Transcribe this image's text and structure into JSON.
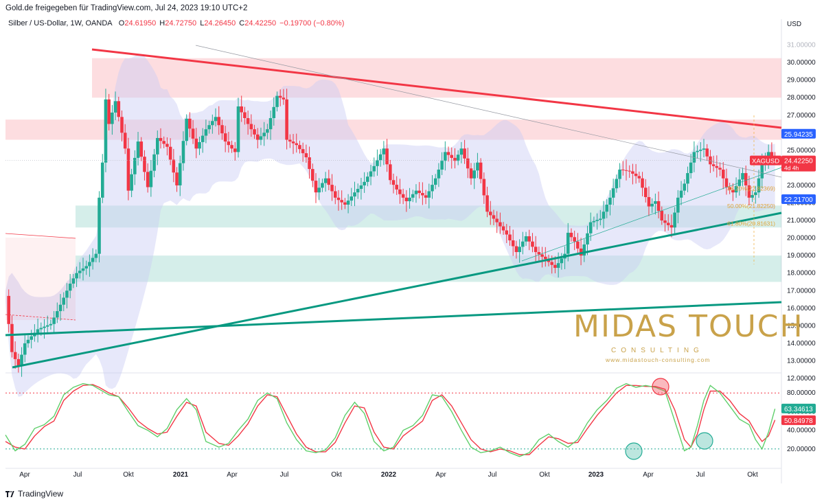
{
  "header": {
    "source": "Gold.de freigegeben für TradingView.com, Jul 24, 2023 19:10 UTC+2"
  },
  "legend": {
    "symbol": "Silber / US-Dollar, 1W, OANDA",
    "o_label": "O",
    "o": "24.61950",
    "h_label": "H",
    "h": "24.72750",
    "l_label": "L",
    "l": "24.26450",
    "c_label": "C",
    "c": "24.42250",
    "change": "−0.19700 (−0.80%)"
  },
  "footer": {
    "brand": "TradingView"
  },
  "watermark": {
    "title": "MIDAS TOUCH",
    "subtitle": "CONSULTING",
    "url": "www.midastouch-consulting.com"
  },
  "colors": {
    "up": "#22ab94",
    "down": "#f23645",
    "resistance": "#f23645",
    "support": "#089981",
    "band_fill": "#c9cdf5",
    "stoch_k": "#5fcf6b",
    "stoch_d": "#f23645",
    "gold": "#c9a24a"
  },
  "chart_data": {
    "type": "candlestick",
    "currency": "USD",
    "x_ticks": [
      "Apr",
      "Jul",
      "Okt",
      "2021",
      "Apr",
      "Jul",
      "Okt",
      "2022",
      "Apr",
      "Jul",
      "Okt",
      "2023",
      "Apr",
      "Jul",
      "Okt"
    ],
    "y_ticks": [
      "31.00000",
      "30.00000",
      "29.00000",
      "28.00000",
      "27.00000",
      "26.00000",
      "25.00000",
      "24.00000",
      "23.00000",
      "22.00000",
      "21.00000",
      "20.00000",
      "19.00000",
      "18.00000",
      "17.00000",
      "16.00000",
      "15.00000",
      "14.00000",
      "13.00000",
      "12.00000"
    ],
    "ylim": [
      11.4,
      31.3
    ],
    "close_path": [
      [
        0,
        16.7
      ],
      [
        2,
        13.5
      ],
      [
        4,
        12.7
      ],
      [
        6,
        14.0
      ],
      [
        10,
        14.8
      ],
      [
        14,
        15.1
      ],
      [
        17,
        16.2
      ],
      [
        20,
        17.4
      ],
      [
        22,
        18.0
      ],
      [
        25,
        18.4
      ],
      [
        28,
        19.1
      ],
      [
        29,
        22.3
      ],
      [
        30,
        24.3
      ],
      [
        31,
        27.9
      ],
      [
        32,
        26.5
      ],
      [
        34,
        27.8
      ],
      [
        37,
        25.1
      ],
      [
        38,
        22.7
      ],
      [
        41,
        25.5
      ],
      [
        44,
        22.9
      ],
      [
        47,
        25.7
      ],
      [
        50,
        25.2
      ],
      [
        53,
        23.0
      ],
      [
        56,
        26.8
      ],
      [
        59,
        25.1
      ],
      [
        62,
        26.2
      ],
      [
        65,
        26.9
      ],
      [
        68,
        25.5
      ],
      [
        71,
        24.9
      ],
      [
        72,
        27.5
      ],
      [
        75,
        26.5
      ],
      [
        78,
        25.6
      ],
      [
        81,
        26.2
      ],
      [
        84,
        28.1
      ],
      [
        86,
        27.9
      ],
      [
        87,
        25.6
      ],
      [
        90,
        25.3
      ],
      [
        93,
        24.6
      ],
      [
        96,
        22.6
      ],
      [
        99,
        23.4
      ],
      [
        102,
        22.3
      ],
      [
        105,
        21.9
      ],
      [
        108,
        22.6
      ],
      [
        111,
        23.2
      ],
      [
        114,
        24.1
      ],
      [
        117,
        25.1
      ],
      [
        119,
        23.3
      ],
      [
        122,
        22.5
      ],
      [
        124,
        22.1
      ],
      [
        127,
        22.7
      ],
      [
        130,
        22.3
      ],
      [
        133,
        23.4
      ],
      [
        136,
        24.9
      ],
      [
        139,
        24.4
      ],
      [
        141,
        25.1
      ],
      [
        144,
        23.4
      ],
      [
        146,
        24.3
      ],
      [
        149,
        21.5
      ],
      [
        152,
        20.9
      ],
      [
        155,
        20.2
      ],
      [
        158,
        19.2
      ],
      [
        161,
        20.1
      ],
      [
        164,
        19.2
      ],
      [
        167,
        18.8
      ],
      [
        170,
        18.3
      ],
      [
        173,
        19.1
      ],
      [
        174,
        20.3
      ],
      [
        176,
        19.8
      ],
      [
        178,
        19.0
      ],
      [
        181,
        20.9
      ],
      [
        184,
        21.1
      ],
      [
        187,
        22.3
      ],
      [
        190,
        23.9
      ],
      [
        193,
        23.8
      ],
      [
        196,
        23.4
      ],
      [
        199,
        21.8
      ],
      [
        201,
        22.1
      ],
      [
        203,
        21.0
      ],
      [
        206,
        20.6
      ],
      [
        208,
        22.3
      ],
      [
        210,
        23.1
      ],
      [
        213,
        24.9
      ],
      [
        216,
        25.1
      ],
      [
        218,
        24.2
      ],
      [
        221,
        23.9
      ],
      [
        223,
        22.9
      ],
      [
        225,
        22.6
      ],
      [
        228,
        23.7
      ],
      [
        230,
        22.3
      ],
      [
        232,
        22.6
      ],
      [
        234,
        24.2
      ],
      [
        236,
        24.9
      ],
      [
        238,
        24.4
      ]
    ],
    "levels": {
      "XAGUSD": {
        "value": "24.42250",
        "label": "XAGUSD",
        "countdown": "4d 4h"
      },
      "resistance_marker": "25.94235",
      "support_marker": "22.21700"
    },
    "fibonacci": [
      {
        "label": "38.20%(22.82369)",
        "value": 22.82369
      },
      {
        "label": "50.00%(21.82250)",
        "value": 21.8225
      },
      {
        "label": "61.80%(20.81631)",
        "value": 20.81631
      }
    ],
    "zones": [
      {
        "name": "resistance-zone-1",
        "from": 28.0,
        "to": 30.25,
        "color": "#f23645"
      },
      {
        "name": "resistance-zone-2",
        "from": 25.6,
        "to": 26.75,
        "color": "#f23645"
      },
      {
        "name": "support-zone-1",
        "from": 20.6,
        "to": 21.85,
        "color": "#089981"
      },
      {
        "name": "support-zone-2",
        "from": 17.5,
        "to": 19.0,
        "color": "#089981"
      }
    ],
    "oscillator": {
      "type": "stochastic",
      "y_ticks": [
        "80.00000",
        "60.00000",
        "40.00000",
        "20.00000"
      ],
      "ylim": [
        0,
        100
      ],
      "overbought": 80,
      "oversold": 20,
      "k_value": "63.34613",
      "d_value": "50.84978",
      "k_path": [
        [
          0,
          35
        ],
        [
          3,
          18
        ],
        [
          6,
          25
        ],
        [
          9,
          42
        ],
        [
          12,
          46
        ],
        [
          15,
          55
        ],
        [
          18,
          78
        ],
        [
          21,
          86
        ],
        [
          24,
          90
        ],
        [
          27,
          88
        ],
        [
          29,
          84
        ],
        [
          32,
          78
        ],
        [
          35,
          76
        ],
        [
          38,
          60
        ],
        [
          41,
          45
        ],
        [
          44,
          40
        ],
        [
          47,
          33
        ],
        [
          50,
          42
        ],
        [
          53,
          62
        ],
        [
          56,
          74
        ],
        [
          59,
          62
        ],
        [
          62,
          28
        ],
        [
          66,
          22
        ],
        [
          69,
          26
        ],
        [
          72,
          40
        ],
        [
          75,
          52
        ],
        [
          78,
          72
        ],
        [
          81,
          80
        ],
        [
          84,
          74
        ],
        [
          87,
          48
        ],
        [
          90,
          30
        ],
        [
          93,
          18
        ],
        [
          96,
          16
        ],
        [
          99,
          19
        ],
        [
          102,
          32
        ],
        [
          105,
          56
        ],
        [
          108,
          70
        ],
        [
          111,
          58
        ],
        [
          114,
          28
        ],
        [
          117,
          18
        ],
        [
          120,
          22
        ],
        [
          123,
          40
        ],
        [
          126,
          45
        ],
        [
          129,
          56
        ],
        [
          132,
          78
        ],
        [
          135,
          76
        ],
        [
          138,
          60
        ],
        [
          141,
          40
        ],
        [
          144,
          22
        ],
        [
          147,
          16
        ],
        [
          150,
          18
        ],
        [
          153,
          22
        ],
        [
          156,
          16
        ],
        [
          159,
          12
        ],
        [
          162,
          16
        ],
        [
          165,
          30
        ],
        [
          168,
          36
        ],
        [
          171,
          28
        ],
        [
          174,
          22
        ],
        [
          177,
          30
        ],
        [
          180,
          48
        ],
        [
          183,
          62
        ],
        [
          186,
          72
        ],
        [
          189,
          85
        ],
        [
          192,
          90
        ],
        [
          195,
          86
        ],
        [
          198,
          88
        ],
        [
          201,
          86
        ],
        [
          204,
          82
        ],
        [
          207,
          50
        ],
        [
          210,
          18
        ],
        [
          212,
          22
        ],
        [
          214,
          45
        ],
        [
          216,
          72
        ],
        [
          218,
          88
        ],
        [
          221,
          80
        ],
        [
          224,
          66
        ],
        [
          227,
          52
        ],
        [
          230,
          46
        ],
        [
          232,
          30
        ],
        [
          234,
          20
        ],
        [
          236,
          38
        ],
        [
          238,
          63
        ]
      ],
      "d_path": [
        [
          0,
          28
        ],
        [
          3,
          22
        ],
        [
          6,
          20
        ],
        [
          9,
          34
        ],
        [
          12,
          44
        ],
        [
          15,
          50
        ],
        [
          18,
          72
        ],
        [
          21,
          82
        ],
        [
          24,
          88
        ],
        [
          27,
          89
        ],
        [
          29,
          86
        ],
        [
          32,
          80
        ],
        [
          35,
          76
        ],
        [
          38,
          64
        ],
        [
          41,
          50
        ],
        [
          44,
          42
        ],
        [
          47,
          36
        ],
        [
          50,
          38
        ],
        [
          53,
          55
        ],
        [
          56,
          70
        ],
        [
          59,
          66
        ],
        [
          62,
          38
        ],
        [
          66,
          26
        ],
        [
          69,
          24
        ],
        [
          72,
          34
        ],
        [
          75,
          47
        ],
        [
          78,
          66
        ],
        [
          81,
          78
        ],
        [
          84,
          76
        ],
        [
          87,
          56
        ],
        [
          90,
          36
        ],
        [
          93,
          22
        ],
        [
          96,
          17
        ],
        [
          99,
          17
        ],
        [
          102,
          27
        ],
        [
          105,
          48
        ],
        [
          108,
          66
        ],
        [
          111,
          64
        ],
        [
          114,
          38
        ],
        [
          117,
          22
        ],
        [
          120,
          20
        ],
        [
          123,
          34
        ],
        [
          126,
          42
        ],
        [
          129,
          50
        ],
        [
          132,
          72
        ],
        [
          135,
          78
        ],
        [
          138,
          66
        ],
        [
          141,
          48
        ],
        [
          144,
          30
        ],
        [
          147,
          20
        ],
        [
          150,
          17
        ],
        [
          153,
          20
        ],
        [
          156,
          18
        ],
        [
          159,
          14
        ],
        [
          162,
          14
        ],
        [
          165,
          24
        ],
        [
          168,
          33
        ],
        [
          171,
          31
        ],
        [
          174,
          26
        ],
        [
          177,
          27
        ],
        [
          180,
          42
        ],
        [
          183,
          56
        ],
        [
          186,
          68
        ],
        [
          189,
          80
        ],
        [
          192,
          88
        ],
        [
          195,
          88
        ],
        [
          198,
          87
        ],
        [
          201,
          87
        ],
        [
          204,
          84
        ],
        [
          207,
          62
        ],
        [
          210,
          30
        ],
        [
          212,
          22
        ],
        [
          214,
          36
        ],
        [
          216,
          62
        ],
        [
          218,
          82
        ],
        [
          221,
          82
        ],
        [
          224,
          72
        ],
        [
          227,
          58
        ],
        [
          230,
          50
        ],
        [
          232,
          38
        ],
        [
          234,
          28
        ],
        [
          236,
          34
        ],
        [
          238,
          51
        ]
      ]
    }
  }
}
